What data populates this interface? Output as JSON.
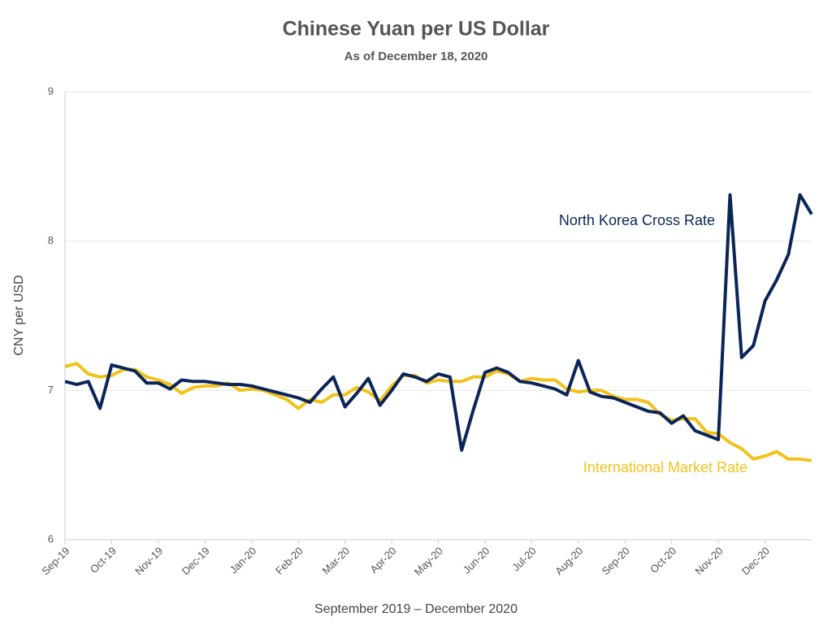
{
  "chart_data": {
    "type": "line",
    "title": "Chinese Yuan per US Dollar",
    "subtitle": "As of December 18, 2020",
    "x_label": "September 2019 – December 2020",
    "y_label": "CNY per USD",
    "categories": [
      "Sep-19",
      null,
      null,
      null,
      "Oct-19",
      null,
      null,
      null,
      "Nov-19",
      null,
      null,
      null,
      "Dec-19",
      null,
      null,
      null,
      "Jan-20",
      null,
      null,
      null,
      "Feb-20",
      null,
      null,
      null,
      "Mar-20",
      null,
      null,
      null,
      "Apr-20",
      null,
      null,
      null,
      "May-20",
      null,
      null,
      null,
      "Jun-20",
      null,
      null,
      null,
      "Jul-20",
      null,
      null,
      null,
      "Aug-20",
      null,
      null,
      null,
      "Sep-20",
      null,
      null,
      null,
      "Oct-20",
      null,
      null,
      null,
      "Nov-20",
      null,
      null,
      null,
      "Dec-20",
      null,
      null,
      null,
      null
    ],
    "series": [
      {
        "name": "North Korea Cross Rate",
        "color": "#0b2559",
        "values": [
          7.06,
          7.04,
          7.06,
          6.88,
          7.17,
          7.15,
          7.13,
          7.05,
          7.05,
          7.01,
          7.07,
          7.06,
          7.06,
          7.05,
          7.04,
          7.04,
          7.03,
          7.01,
          6.99,
          6.97,
          6.95,
          6.92,
          7.01,
          7.09,
          6.89,
          6.98,
          7.08,
          6.9,
          7.0,
          7.11,
          7.09,
          7.06,
          7.11,
          7.09,
          6.6,
          6.87,
          7.12,
          7.15,
          7.12,
          7.06,
          7.05,
          7.03,
          7.01,
          6.97,
          7.2,
          6.99,
          6.96,
          6.95,
          6.92,
          6.89,
          6.86,
          6.85,
          6.78,
          6.83,
          6.73,
          6.7,
          6.67,
          8.31,
          7.22,
          7.3,
          7.6,
          7.74,
          7.91,
          8.31,
          8.18
        ]
      },
      {
        "name": "International Market Rate",
        "color": "#f2c21b",
        "values": [
          7.16,
          7.18,
          7.11,
          7.09,
          7.1,
          7.14,
          7.14,
          7.09,
          7.07,
          7.04,
          6.98,
          7.02,
          7.03,
          7.03,
          7.05,
          7.0,
          7.01,
          7.0,
          6.97,
          6.94,
          6.88,
          6.94,
          6.92,
          6.97,
          6.97,
          7.02,
          6.99,
          6.93,
          7.03,
          7.1,
          7.1,
          7.05,
          7.07,
          7.06,
          7.06,
          7.09,
          7.09,
          7.13,
          7.11,
          7.06,
          7.08,
          7.07,
          7.07,
          7.01,
          6.99,
          7.0,
          7.0,
          6.96,
          6.94,
          6.94,
          6.92,
          6.84,
          6.8,
          6.81,
          6.81,
          6.72,
          6.71,
          6.65,
          6.61,
          6.54,
          6.56,
          6.59,
          6.54,
          6.54,
          6.53
        ]
      }
    ],
    "ylim": [
      6,
      9
    ],
    "yticks": [
      6,
      7,
      8,
      9
    ],
    "grid": true
  }
}
